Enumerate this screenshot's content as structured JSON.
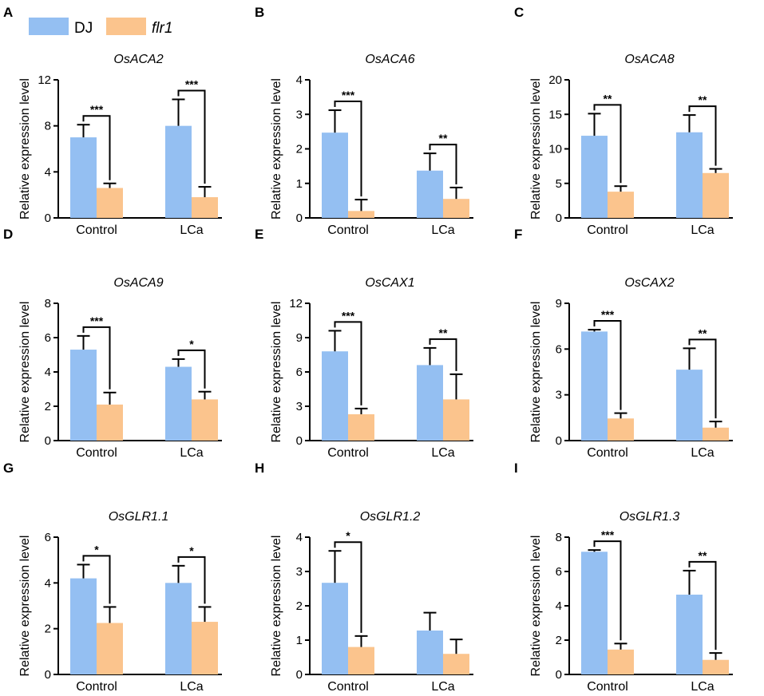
{
  "legend": [
    {
      "label": "DJ",
      "color": "#94bff2"
    },
    {
      "label": "flr1",
      "color": "#fbc48d",
      "italic": true
    }
  ],
  "error_bar_color": "#000000",
  "chart_data": [
    {
      "panel": "A",
      "type": "bar",
      "title": "OsACA2",
      "ylabel": "Relative expression level",
      "categories": [
        "Control",
        "LCa"
      ],
      "ylim": [
        0,
        12
      ],
      "yticks": [
        "0",
        "4",
        "8",
        "12"
      ],
      "series": [
        {
          "name": "DJ",
          "values": [
            7.0,
            8.0
          ],
          "errors": [
            1.1,
            2.3
          ]
        },
        {
          "name": "flr1",
          "values": [
            2.6,
            1.8
          ],
          "errors": [
            0.4,
            0.9
          ]
        }
      ],
      "significance": [
        "***",
        "***"
      ]
    },
    {
      "panel": "B",
      "type": "bar",
      "title": "OsACA6",
      "ylabel": "Relative expression level",
      "categories": [
        "Control",
        "LCa"
      ],
      "ylim": [
        0,
        4
      ],
      "yticks": [
        "0",
        "1",
        "2",
        "3",
        "4"
      ],
      "series": [
        {
          "name": "DJ",
          "values": [
            2.47,
            1.37
          ],
          "errors": [
            0.65,
            0.5
          ]
        },
        {
          "name": "flr1",
          "values": [
            0.2,
            0.55
          ],
          "errors": [
            0.33,
            0.33
          ]
        }
      ],
      "significance": [
        "***",
        "**"
      ]
    },
    {
      "panel": "C",
      "type": "bar",
      "title": "OsACA8",
      "ylabel": "Relative expression level",
      "categories": [
        "Control",
        "LCa"
      ],
      "ylim": [
        0,
        20
      ],
      "yticks": [
        "0",
        "5",
        "10",
        "15",
        "20"
      ],
      "series": [
        {
          "name": "DJ",
          "values": [
            11.9,
            12.4
          ],
          "errors": [
            3.2,
            2.5
          ]
        },
        {
          "name": "flr1",
          "values": [
            3.8,
            6.5
          ],
          "errors": [
            0.8,
            0.6
          ]
        }
      ],
      "significance": [
        "**",
        "**"
      ]
    },
    {
      "panel": "D",
      "type": "bar",
      "title": "OsACA9",
      "ylabel": "Relative expression level",
      "categories": [
        "Control",
        "LCa"
      ],
      "ylim": [
        0,
        8
      ],
      "yticks": [
        "0",
        "2",
        "4",
        "6",
        "8"
      ],
      "series": [
        {
          "name": "DJ",
          "values": [
            5.3,
            4.3
          ],
          "errors": [
            0.8,
            0.45
          ]
        },
        {
          "name": "flr1",
          "values": [
            2.1,
            2.4
          ],
          "errors": [
            0.7,
            0.45
          ]
        }
      ],
      "significance": [
        "***",
        "*"
      ]
    },
    {
      "panel": "E",
      "type": "bar",
      "title": "OsCAX1",
      "ylabel": "Relative expression level",
      "categories": [
        "Control",
        "LCa"
      ],
      "ylim": [
        0,
        12
      ],
      "yticks": [
        "0",
        "3",
        "6",
        "9",
        "12"
      ],
      "series": [
        {
          "name": "DJ",
          "values": [
            7.8,
            6.6
          ],
          "errors": [
            1.8,
            1.5
          ]
        },
        {
          "name": "flr1",
          "values": [
            2.3,
            3.6
          ],
          "errors": [
            0.5,
            2.2
          ]
        }
      ],
      "significance": [
        "***",
        "**"
      ]
    },
    {
      "panel": "F",
      "type": "bar",
      "title": "OsCAX2",
      "ylabel": "Relative expression level",
      "categories": [
        "Control",
        "LCa"
      ],
      "ylim": [
        0,
        9
      ],
      "yticks": [
        "0",
        "3",
        "6",
        "9"
      ],
      "series": [
        {
          "name": "DJ",
          "values": [
            7.15,
            4.65
          ],
          "errors": [
            0.12,
            1.4
          ]
        },
        {
          "name": "flr1",
          "values": [
            1.45,
            0.85
          ],
          "errors": [
            0.35,
            0.4
          ]
        }
      ],
      "significance": [
        "***",
        "**"
      ]
    },
    {
      "panel": "G",
      "type": "bar",
      "title": "OsGLR1.1",
      "ylabel": "Relative expression level",
      "categories": [
        "Control",
        "LCa"
      ],
      "ylim": [
        0,
        6
      ],
      "yticks": [
        "0",
        "2",
        "4",
        "6"
      ],
      "series": [
        {
          "name": "DJ",
          "values": [
            4.2,
            4.0
          ],
          "errors": [
            0.6,
            0.75
          ]
        },
        {
          "name": "flr1",
          "values": [
            2.25,
            2.3
          ],
          "errors": [
            0.7,
            0.65
          ]
        }
      ],
      "significance": [
        "*",
        "*"
      ]
    },
    {
      "panel": "H",
      "type": "bar",
      "title": "OsGLR1.2",
      "ylabel": "Relative expression level",
      "categories": [
        "Control",
        "LCa"
      ],
      "ylim": [
        0,
        4
      ],
      "yticks": [
        "0",
        "1",
        "2",
        "3",
        "4"
      ],
      "series": [
        {
          "name": "DJ",
          "values": [
            2.67,
            1.28
          ],
          "errors": [
            0.93,
            0.52
          ]
        },
        {
          "name": "flr1",
          "values": [
            0.8,
            0.6
          ],
          "errors": [
            0.32,
            0.42
          ]
        }
      ],
      "significance": [
        "*",
        ""
      ]
    },
    {
      "panel": "I",
      "type": "bar",
      "title": "OsGLR1.3",
      "ylabel": "Relative expression level",
      "categories": [
        "Control",
        "LCa"
      ],
      "ylim": [
        0,
        8
      ],
      "yticks": [
        "0",
        "2",
        "4",
        "6",
        "8"
      ],
      "series": [
        {
          "name": "DJ",
          "values": [
            7.15,
            4.65
          ],
          "errors": [
            0.1,
            1.4
          ]
        },
        {
          "name": "flr1",
          "values": [
            1.45,
            0.85
          ],
          "errors": [
            0.35,
            0.4
          ]
        }
      ],
      "significance": [
        "***",
        "**"
      ]
    }
  ]
}
